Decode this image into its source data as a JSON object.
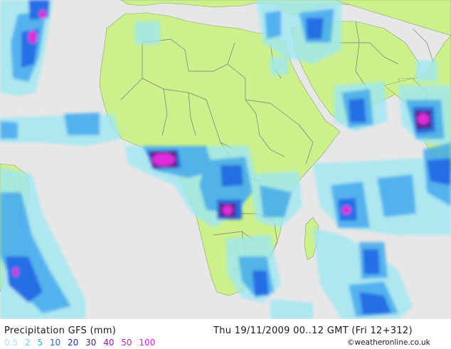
{
  "footer": {
    "title": "Precipitation GFS (mm)",
    "datetime": "Thu 19/11/2009 00..12 GMT (Fri 12+312)",
    "credit": "©weatheronline.co.uk"
  },
  "legend": [
    {
      "label": "0.5",
      "color": "#9fe8f4"
    },
    {
      "label": "2",
      "color": "#6bd0f0"
    },
    {
      "label": "5",
      "color": "#3aa6ee"
    },
    {
      "label": "10",
      "color": "#1c68e6"
    },
    {
      "label": "20",
      "color": "#1532a8"
    },
    {
      "label": "30",
      "color": "#4b1c8c"
    },
    {
      "label": "40",
      "color": "#8a1fa2"
    },
    {
      "label": "50",
      "color": "#c11fbf"
    },
    {
      "label": "100",
      "color": "#e020e0"
    }
  ],
  "colors": {
    "ocean": "#e7e7e7",
    "land": "#ccf08c",
    "border": "#7a7a7a"
  }
}
